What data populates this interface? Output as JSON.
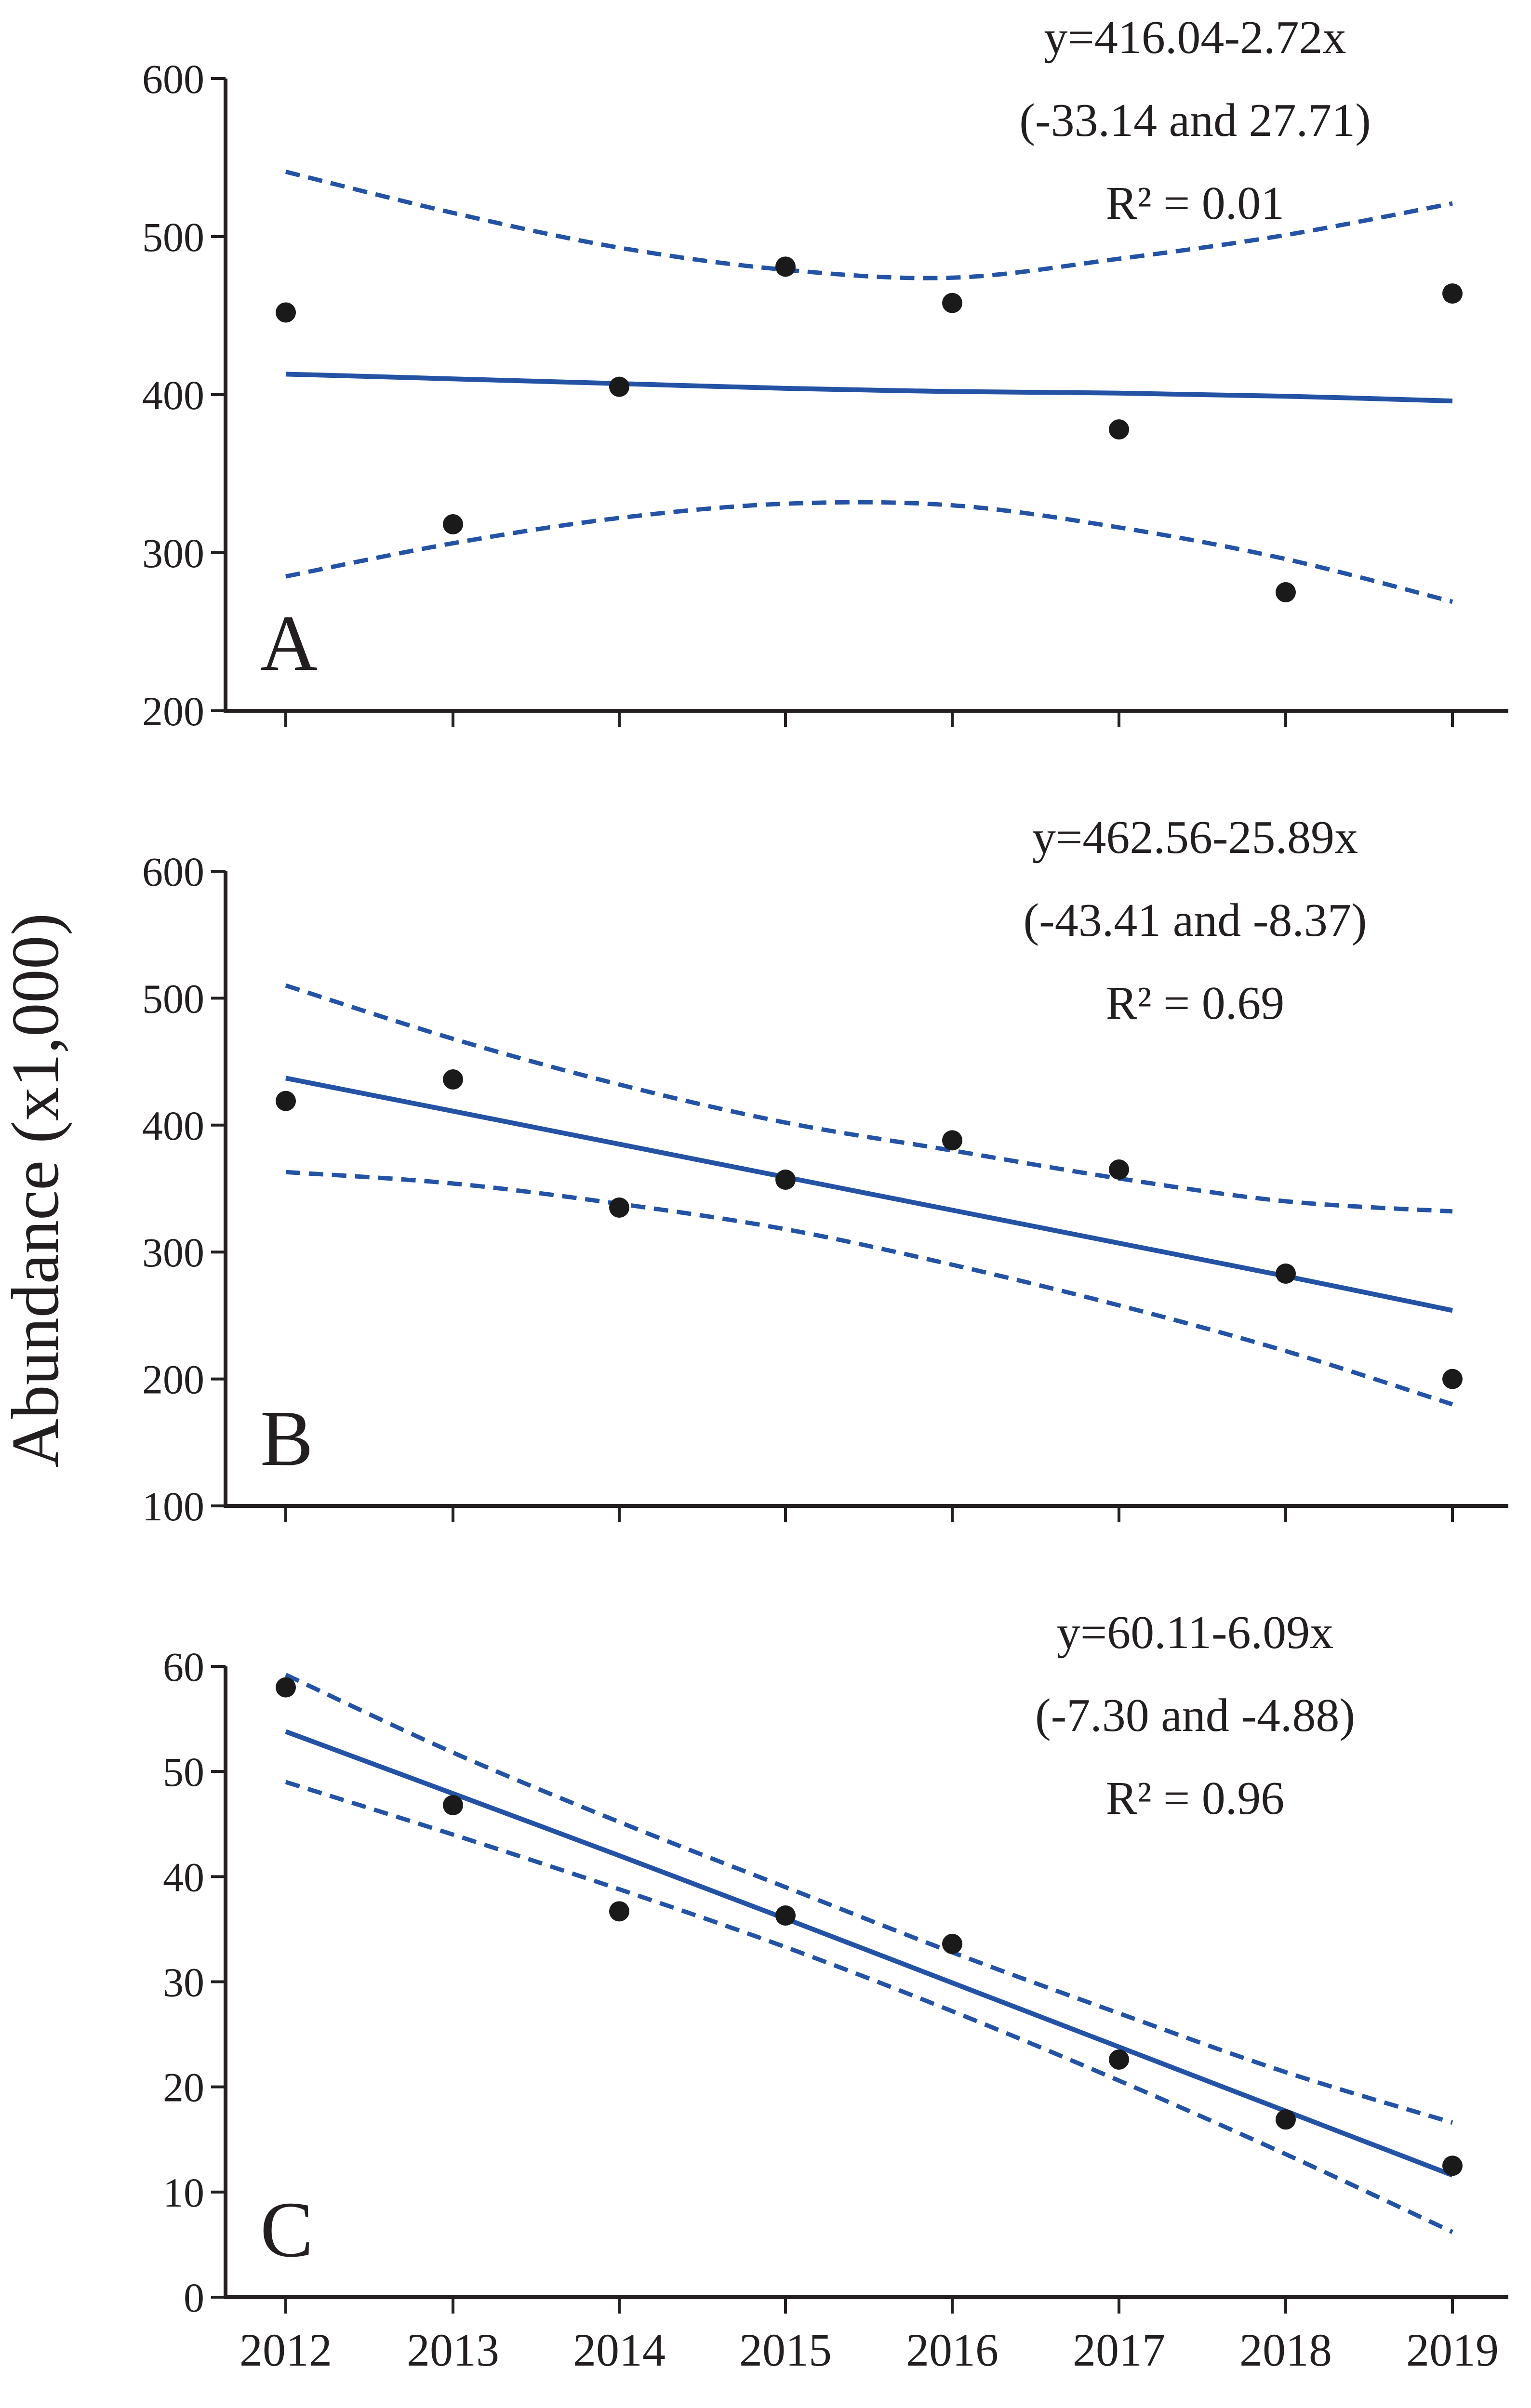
{
  "ylabel": "Abundance (x1,000)",
  "colors": {
    "fit": "#2452a4",
    "points": "#1a1a1a",
    "axis": "#231f20"
  },
  "chart_data": [
    {
      "type": "scatter",
      "panel": "A",
      "x": [
        2012,
        2013,
        2014,
        2015,
        2016,
        2017,
        2018,
        2019
      ],
      "xticks": [
        "2012",
        "2013",
        "2014",
        "2015",
        "2016",
        "2017",
        "2018",
        "2019"
      ],
      "points": [
        452,
        318,
        405,
        481,
        458,
        378,
        275,
        464
      ],
      "fit": [
        413,
        410,
        407,
        404,
        402,
        401,
        399,
        396
      ],
      "ci_upper": [
        541,
        515,
        493,
        479,
        474,
        486,
        501,
        521
      ],
      "ci_lower": [
        285,
        306,
        322,
        331,
        330,
        316,
        296,
        269
      ],
      "ylim": [
        200,
        600
      ],
      "yticks": [
        "200",
        "300",
        "400",
        "500",
        "600"
      ],
      "eq_line1": "y=416.04-2.72x",
      "eq_line2": "(-33.14 and 27.71)",
      "eq_line3": "R² = 0.01"
    },
    {
      "type": "scatter",
      "panel": "B",
      "x": [
        2012,
        2013,
        2014,
        2015,
        2016,
        2017,
        2018,
        2019
      ],
      "xticks": [
        "2012",
        "2013",
        "2014",
        "2015",
        "2016",
        "2017",
        "2018",
        "2019"
      ],
      "points": [
        419,
        436,
        335,
        357,
        388,
        365,
        283,
        200
      ],
      "fit": [
        437,
        411,
        385,
        359,
        333,
        307,
        281,
        254
      ],
      "ci_upper": [
        510,
        468,
        432,
        402,
        380,
        358,
        340,
        332
      ],
      "ci_lower": [
        363,
        354,
        338,
        318,
        290,
        258,
        222,
        180
      ],
      "ylim": [
        100,
        600
      ],
      "yticks": [
        "100",
        "200",
        "300",
        "400",
        "500",
        "600"
      ],
      "eq_line1": "y=462.56-25.89x",
      "eq_line2": "(-43.41 and -8.37)",
      "eq_line3": "R² = 0.69"
    },
    {
      "type": "scatter",
      "panel": "C",
      "x": [
        2012,
        2013,
        2014,
        2015,
        2016,
        2017,
        2018,
        2019
      ],
      "xticks": [
        "2012",
        "2013",
        "2014",
        "2015",
        "2016",
        "2017",
        "2018",
        "2019"
      ],
      "points": [
        58,
        46.8,
        36.7,
        36.3,
        33.6,
        22.6,
        16.9,
        12.5
      ],
      "fit": [
        53.8,
        47.9,
        42,
        36,
        29.9,
        23.8,
        17.7,
        11.6
      ],
      "ci_upper": [
        59.2,
        51.8,
        45.2,
        39,
        32.8,
        27,
        21.4,
        16.6
      ],
      "ci_lower": [
        49,
        44,
        38.8,
        33.3,
        27.2,
        20.6,
        13.6,
        6.2
      ],
      "ylim": [
        0,
        60
      ],
      "yticks": [
        "0",
        "10",
        "20",
        "30",
        "40",
        "50",
        "60"
      ],
      "eq_line1": "y=60.11-6.09x",
      "eq_line2": "(-7.30 and -4.88)",
      "eq_line3": "R² = 0.96"
    }
  ]
}
